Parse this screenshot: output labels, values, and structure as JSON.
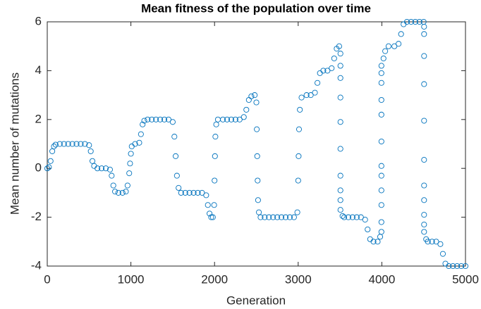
{
  "chart_data": {
    "type": "scatter",
    "title": "Mean fitness of the population over time",
    "x_label": "Generation",
    "y_label": "Mean number of mutations",
    "color": "#0072bd",
    "xlim": [
      0,
      5000
    ],
    "xticks": [
      0,
      1000,
      2000,
      3000,
      4000,
      5000
    ],
    "ylim": [
      -4,
      6
    ],
    "yticks": [
      -4,
      -2,
      0,
      2,
      4,
      6
    ],
    "grid": false,
    "x": [
      0,
      20,
      40,
      60,
      80,
      100,
      150,
      200,
      250,
      300,
      350,
      400,
      450,
      500,
      520,
      540,
      560,
      600,
      650,
      700,
      750,
      770,
      790,
      810,
      850,
      900,
      940,
      960,
      980,
      990,
      1000,
      1010,
      1050,
      1100,
      1120,
      1140,
      1160,
      1200,
      1250,
      1300,
      1350,
      1400,
      1450,
      1500,
      1520,
      1535,
      1550,
      1570,
      1600,
      1650,
      1700,
      1750,
      1800,
      1850,
      1900,
      1920,
      1940,
      1960,
      1980,
      1995,
      2000,
      2005,
      2010,
      2020,
      2040,
      2100,
      2150,
      2200,
      2250,
      2300,
      2350,
      2380,
      2410,
      2440,
      2480,
      2500,
      2505,
      2510,
      2515,
      2520,
      2530,
      2550,
      2600,
      2650,
      2700,
      2750,
      2800,
      2850,
      2900,
      2950,
      2990,
      3000,
      3005,
      3010,
      3020,
      3040,
      3100,
      3150,
      3200,
      3230,
      3260,
      3300,
      3350,
      3400,
      3430,
      3460,
      3490,
      3505,
      3505,
      3505,
      3505,
      3505,
      3505,
      3505,
      3505,
      3505,
      3505,
      3530,
      3550,
      3600,
      3650,
      3700,
      3750,
      3800,
      3830,
      3860,
      3900,
      3950,
      3980,
      3995,
      3995,
      3995,
      3995,
      3995,
      3995,
      3995,
      3995,
      3995,
      3995,
      3995,
      3995,
      4020,
      4040,
      4080,
      4150,
      4200,
      4230,
      4260,
      4300,
      4350,
      4400,
      4450,
      4500,
      4505,
      4505,
      4505,
      4505,
      4505,
      4505,
      4505,
      4505,
      4505,
      4505,
      4505,
      4530,
      4550,
      4600,
      4650,
      4700,
      4730,
      4760,
      4800,
      4850,
      4900,
      4950,
      5000
    ],
    "values": [
      0,
      0.05,
      0.3,
      0.7,
      0.9,
      0.97,
      1,
      1,
      1,
      1,
      1,
      1,
      1,
      0.95,
      0.7,
      0.3,
      0.1,
      0,
      0,
      0,
      -0.05,
      -0.3,
      -0.7,
      -0.95,
      -1,
      -1,
      -0.95,
      -0.7,
      -0.2,
      0.2,
      0.6,
      0.9,
      1,
      1.05,
      1.4,
      1.8,
      1.95,
      2,
      2,
      2,
      2,
      2,
      2,
      1.9,
      1.3,
      0.5,
      -0.3,
      -0.8,
      -1,
      -1,
      -1,
      -1,
      -1,
      -1,
      -1.1,
      -1.5,
      -1.85,
      -2,
      -2,
      -1.5,
      -0.5,
      0.5,
      1.3,
      1.8,
      2,
      2,
      2,
      2,
      2,
      2,
      2.1,
      2.4,
      2.8,
      2.95,
      3,
      2.7,
      1.6,
      0.5,
      -0.5,
      -1.3,
      -1.8,
      -2,
      -2,
      -2,
      -2,
      -2,
      -2,
      -2,
      -2,
      -2,
      -1.8,
      -0.5,
      0.5,
      1.6,
      2.4,
      2.9,
      3,
      3,
      3.1,
      3.5,
      3.9,
      4,
      4,
      4.1,
      4.5,
      4.9,
      5,
      4.7,
      4.2,
      3.7,
      2.9,
      1.9,
      0.8,
      -0.3,
      -0.9,
      -1.3,
      -1.7,
      -1.95,
      -2,
      -2,
      -2,
      -2,
      -2,
      -2.1,
      -2.5,
      -2.9,
      -3,
      -3,
      -2.8,
      -2.6,
      -2.2,
      -1.5,
      -0.9,
      -0.3,
      0.1,
      1.1,
      2.2,
      2.8,
      3.5,
      3.9,
      4.2,
      4.5,
      4.8,
      5,
      5,
      5.1,
      5.5,
      5.9,
      6,
      6,
      6,
      6,
      6,
      5.8,
      5.5,
      4.6,
      3.45,
      1.95,
      0.35,
      -0.7,
      -1.3,
      -1.9,
      -2.3,
      -2.6,
      -2.9,
      -3,
      -3,
      -3,
      -3.1,
      -3.5,
      -3.9,
      -4,
      -4,
      -4,
      -4,
      -4
    ]
  }
}
